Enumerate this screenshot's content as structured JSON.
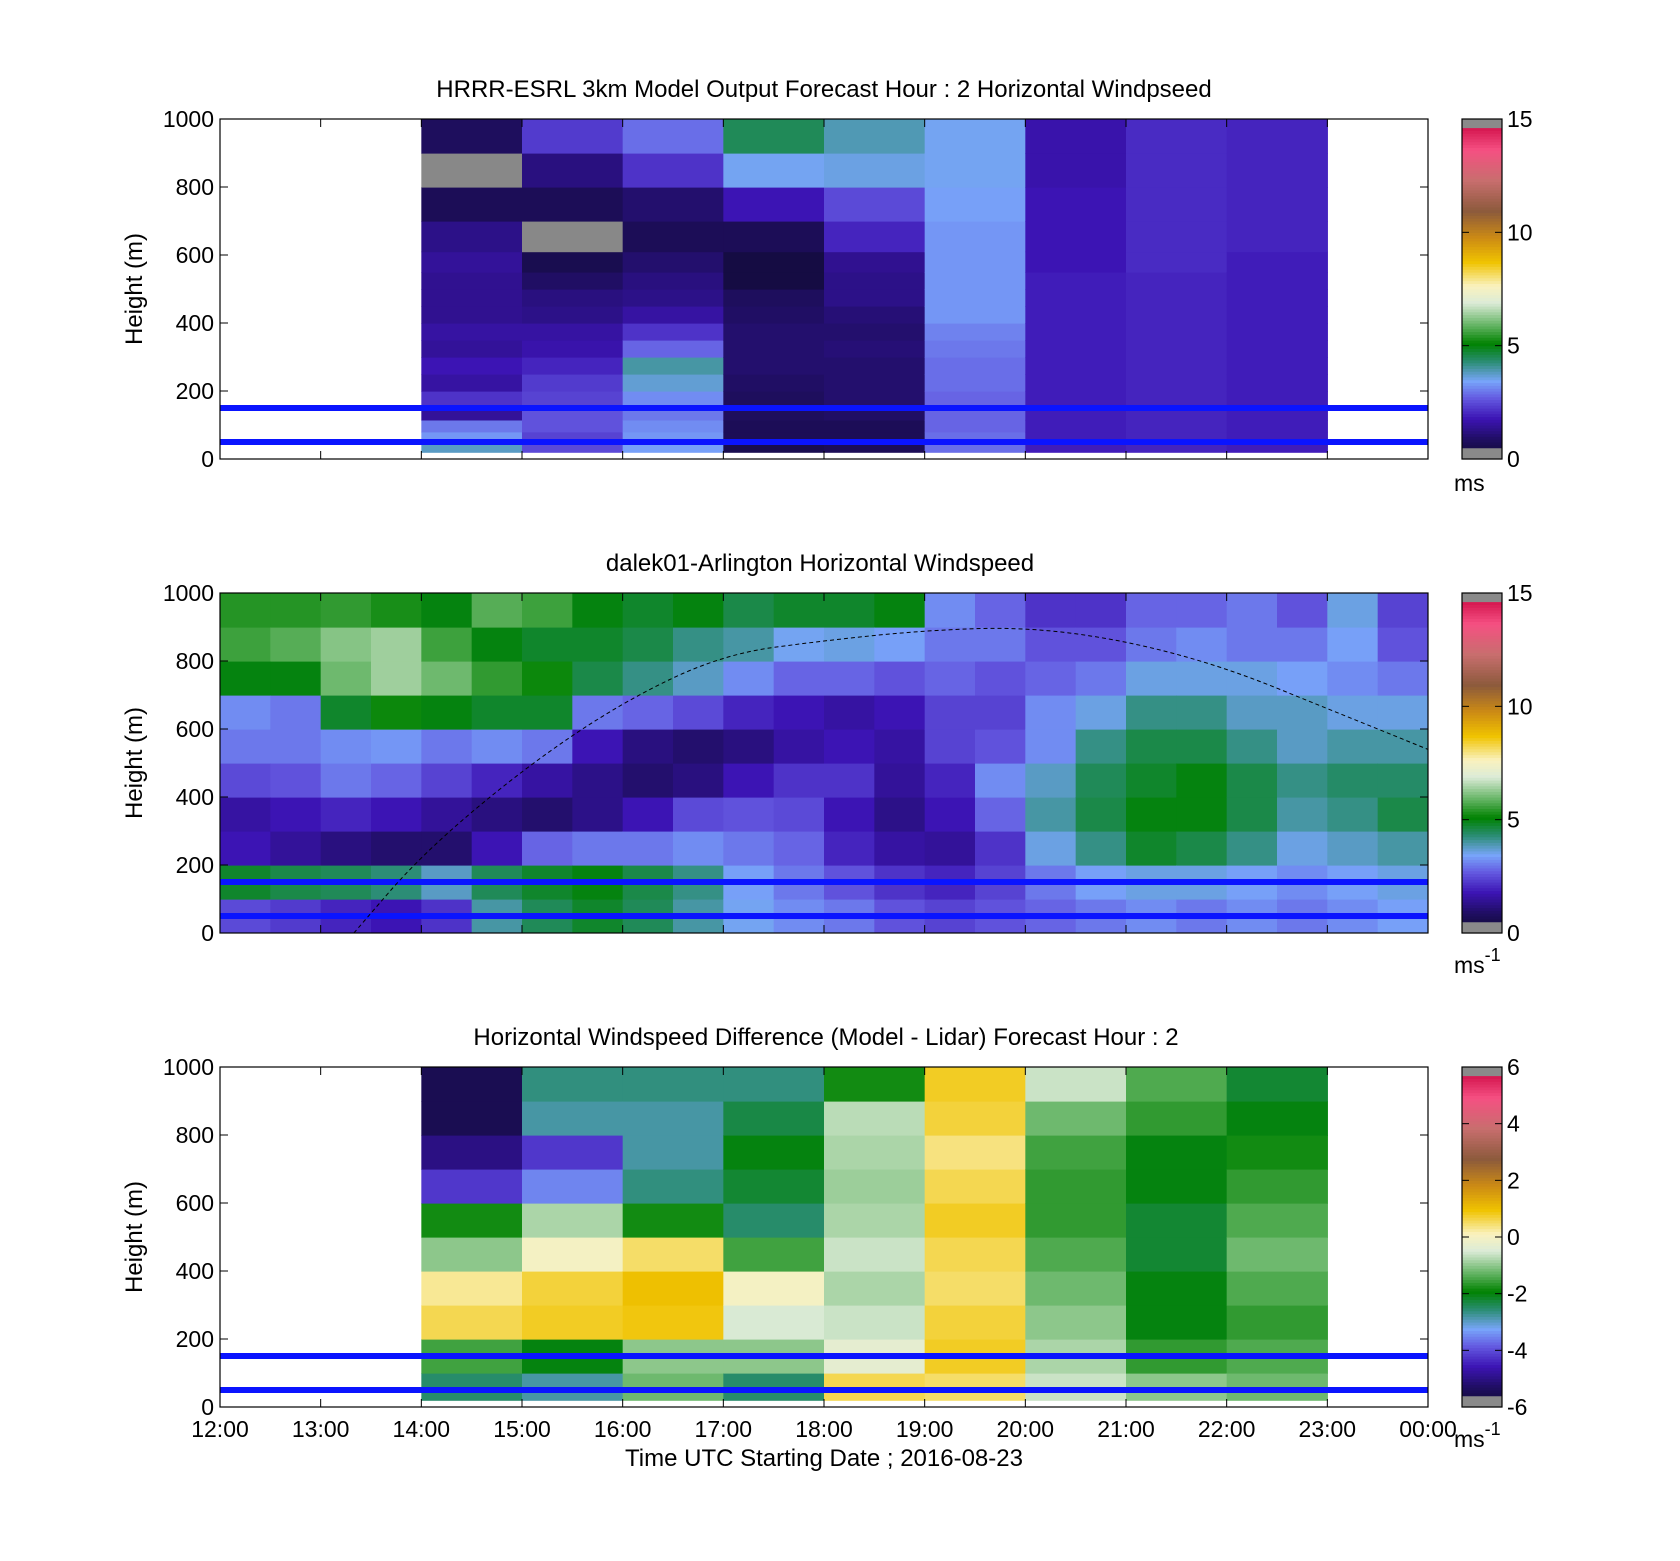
{
  "figure": {
    "xlabel": "Time UTC  Starting Date ; 2016-08-23",
    "x_tick_labels": [
      "12:00",
      "13:00",
      "14:00",
      "15:00",
      "16:00",
      "17:00",
      "18:00",
      "19:00",
      "20:00",
      "21:00",
      "22:00",
      "23:00",
      "00:00"
    ]
  },
  "chart_data": [
    {
      "type": "heatmap",
      "title": "HRRR-ESRL 3km Model Output   Forecast Hour : 2 Horizontal Windpseed",
      "ylabel": "Height (m)",
      "xlim": [
        "12:00",
        "00:00"
      ],
      "ylim": [
        0,
        1000
      ],
      "y_ticks": [
        0,
        200,
        400,
        600,
        800,
        1000
      ],
      "colorbar": {
        "range": [
          0,
          15
        ],
        "ticks": [
          0,
          5,
          10,
          15
        ],
        "unit": "ms",
        "unit_sup": ""
      },
      "reference_lines_m": [
        50,
        150
      ],
      "time_columns": [
        "14:00",
        "15:00",
        "16:00",
        "17:00",
        "18:00",
        "19:00",
        "20:00",
        "21:00",
        "22:00"
      ],
      "heights_m": [
        30,
        60,
        100,
        130,
        170,
        230,
        270,
        330,
        370,
        430,
        470,
        530,
        570,
        650,
        750,
        850,
        950
      ],
      "values_ms": [
        [
          3.8,
          3.3,
          3.0,
          1.5,
          2.2,
          1.6,
          1.8,
          1.5,
          1.6,
          1.4,
          1.4,
          1.4,
          1.5,
          1.3,
          0.7,
          -1,
          0.8
        ],
        [
          2.5,
          2.4,
          2.6,
          2.6,
          2.4,
          2.3,
          2.0,
          1.7,
          1.6,
          1.3,
          1.2,
          0.9,
          0.6,
          -1,
          0.7,
          1.2,
          2.3
        ],
        [
          3.4,
          3.3,
          3.2,
          3.0,
          3.2,
          3.7,
          4.0,
          2.8,
          2.2,
          1.6,
          1.3,
          1.2,
          1.0,
          0.7,
          1.0,
          2.2,
          2.9
        ],
        [
          0.6,
          0.7,
          0.7,
          0.8,
          0.8,
          0.9,
          1.0,
          1.0,
          1.0,
          0.9,
          0.8,
          0.4,
          0.4,
          0.7,
          1.8,
          3.5,
          4.5
        ],
        [
          0.7,
          0.7,
          0.7,
          0.9,
          1.0,
          1.0,
          1.0,
          1.1,
          1.0,
          1.1,
          1.3,
          1.3,
          1.4,
          2.0,
          2.5,
          3.6,
          3.9
        ],
        [
          2.9,
          2.9,
          2.8,
          2.8,
          2.8,
          2.9,
          2.9,
          3.0,
          3.1,
          3.3,
          3.3,
          3.3,
          3.3,
          3.3,
          3.4,
          3.5,
          3.5
        ],
        [
          1.9,
          1.9,
          1.9,
          1.9,
          1.9,
          1.9,
          1.9,
          1.9,
          1.9,
          1.9,
          1.9,
          1.9,
          1.8,
          1.8,
          1.8,
          1.7,
          1.7
        ],
        [
          2.0,
          2.0,
          2.0,
          2.0,
          2.0,
          2.0,
          2.0,
          2.0,
          2.0,
          2.0,
          2.0,
          2.0,
          2.1,
          2.1,
          2.1,
          2.1,
          2.1
        ],
        [
          1.9,
          1.9,
          1.9,
          1.9,
          1.9,
          1.9,
          1.9,
          1.9,
          1.9,
          1.9,
          1.9,
          1.9,
          1.9,
          2.0,
          2.0,
          2.0,
          2.0
        ]
      ]
    },
    {
      "type": "heatmap",
      "title": "dalek01-Arlington  Horizontal Windspeed",
      "ylabel": "Height (m)",
      "xlim": [
        "12:00",
        "00:00"
      ],
      "ylim": [
        0,
        1000
      ],
      "y_ticks": [
        0,
        200,
        400,
        600,
        800,
        1000
      ],
      "colorbar": {
        "range": [
          0,
          15
        ],
        "ticks": [
          0,
          5,
          10,
          15
        ],
        "unit": "ms",
        "unit_sup": "-1"
      },
      "reference_lines_m": [
        50,
        150
      ],
      "overlay_curve": {
        "style": "dashed",
        "points": [
          [
            13.33,
            0
          ],
          [
            14.0,
            230
          ],
          [
            15.0,
            480
          ],
          [
            16.0,
            680
          ],
          [
            17.0,
            820
          ],
          [
            18.0,
            860
          ],
          [
            19.0,
            890
          ],
          [
            20.0,
            900
          ],
          [
            21.0,
            860
          ],
          [
            22.0,
            780
          ],
          [
            23.0,
            660
          ],
          [
            24.0,
            540
          ]
        ]
      },
      "time_columns": [
        "12:00",
        "12:30",
        "13:00",
        "13:30",
        "14:00",
        "14:30",
        "15:00",
        "15:30",
        "16:00",
        "16:30",
        "17:00",
        "17:30",
        "18:00",
        "18:30",
        "19:00",
        "19:30",
        "20:00",
        "20:30",
        "21:00",
        "21:30",
        "22:00",
        "22:30",
        "23:00",
        "23:30"
      ],
      "heights_m": [
        50,
        150,
        250,
        350,
        450,
        550,
        650,
        750,
        850,
        950
      ],
      "values_ms": [
        [
          2.5,
          4.8,
          1.8,
          1.6,
          2.5,
          3.0,
          3.2,
          5.0,
          5.6,
          5.4
        ],
        [
          2.3,
          4.6,
          1.5,
          1.8,
          2.6,
          3.0,
          3.0,
          5.0,
          5.8,
          5.4
        ],
        [
          2.0,
          4.5,
          1.2,
          2.0,
          3.0,
          3.2,
          4.8,
          6.0,
          6.2,
          5.5
        ],
        [
          1.8,
          4.3,
          1.0,
          1.8,
          2.8,
          3.3,
          5.2,
          6.4,
          6.4,
          5.3
        ],
        [
          2.2,
          3.8,
          1.0,
          1.5,
          2.4,
          3.0,
          5.0,
          6.0,
          5.6,
          5.0
        ],
        [
          4.0,
          4.5,
          1.8,
          1.2,
          2.0,
          3.2,
          4.8,
          5.5,
          5.0,
          5.8
        ],
        [
          4.5,
          4.8,
          2.8,
          1.0,
          1.6,
          3.0,
          4.8,
          5.2,
          4.8,
          5.6
        ],
        [
          4.8,
          5.0,
          3.0,
          1.3,
          1.3,
          1.8,
          3.0,
          4.6,
          4.8,
          5.0
        ],
        [
          4.5,
          4.6,
          3.0,
          1.8,
          1.0,
          1.2,
          2.8,
          4.2,
          4.6,
          4.8
        ],
        [
          4.0,
          4.2,
          3.2,
          2.5,
          1.2,
          1.0,
          2.5,
          3.8,
          4.2,
          5.0
        ],
        [
          3.5,
          3.4,
          3.0,
          2.6,
          1.8,
          1.2,
          2.0,
          3.2,
          4.0,
          4.6
        ],
        [
          3.2,
          3.0,
          2.8,
          2.5,
          2.2,
          1.6,
          1.8,
          2.8,
          3.5,
          4.8
        ],
        [
          3.0,
          2.6,
          2.0,
          1.8,
          2.2,
          1.8,
          1.6,
          2.8,
          3.6,
          4.8
        ],
        [
          2.6,
          2.2,
          1.6,
          1.3,
          1.5,
          1.6,
          1.8,
          2.6,
          3.4,
          5.0
        ],
        [
          2.4,
          2.0,
          1.5,
          1.8,
          2.0,
          2.4,
          2.4,
          2.8,
          3.0,
          3.2
        ],
        [
          2.6,
          2.4,
          2.2,
          2.8,
          3.2,
          2.6,
          2.4,
          2.6,
          3.0,
          2.8
        ],
        [
          2.8,
          3.0,
          3.6,
          4.0,
          3.8,
          3.2,
          3.2,
          2.8,
          2.6,
          2.2
        ],
        [
          3.0,
          3.4,
          4.2,
          4.6,
          4.5,
          4.2,
          3.6,
          3.0,
          2.6,
          2.2
        ],
        [
          3.2,
          3.6,
          4.8,
          5.0,
          4.8,
          4.6,
          4.2,
          3.6,
          3.0,
          2.8
        ],
        [
          3.0,
          3.6,
          4.6,
          5.0,
          5.0,
          4.6,
          4.2,
          3.6,
          3.2,
          2.8
        ],
        [
          3.2,
          3.4,
          4.2,
          4.6,
          4.6,
          4.2,
          3.8,
          3.6,
          3.0,
          3.0
        ],
        [
          3.0,
          3.2,
          3.6,
          4.0,
          4.2,
          3.8,
          3.8,
          3.4,
          3.0,
          2.6
        ],
        [
          3.2,
          3.4,
          3.8,
          4.2,
          4.4,
          4.0,
          3.6,
          3.2,
          3.4,
          3.6
        ],
        [
          3.4,
          3.6,
          4.0,
          4.6,
          4.4,
          4.0,
          3.6,
          3.0,
          2.6,
          2.4
        ]
      ]
    },
    {
      "type": "heatmap",
      "title": "Horizontal Windspeed Difference (Model - Lidar) Forecast Hour : 2",
      "ylabel": "Height (m)",
      "xlim": [
        "12:00",
        "00:00"
      ],
      "ylim": [
        0,
        1000
      ],
      "y_ticks": [
        0,
        200,
        400,
        600,
        800,
        1000
      ],
      "colorbar": {
        "range": [
          -6,
          6
        ],
        "ticks": [
          -6,
          -4,
          -2,
          0,
          2,
          4,
          6
        ],
        "unit": "ms",
        "unit_sup": "-1"
      },
      "reference_lines_m": [
        50,
        150
      ],
      "time_columns": [
        "14:00",
        "15:00",
        "16:00",
        "17:00",
        "18:00",
        "19:00",
        "20:00",
        "21:00",
        "22:00"
      ],
      "heights_m": [
        50,
        150,
        250,
        350,
        450,
        550,
        650,
        750,
        850,
        950
      ],
      "values_ms": [
        [
          -2.5,
          -1.5,
          0.6,
          0.3,
          -1.0,
          -1.8,
          -4.2,
          -5.0,
          -5.5,
          -5.5
        ],
        [
          -2.8,
          -2.0,
          0.8,
          0.7,
          0.0,
          -0.8,
          -3.5,
          -4.2,
          -2.8,
          -2.6
        ],
        [
          -1.2,
          -1.0,
          0.9,
          1.0,
          0.5,
          -1.8,
          -2.6,
          -2.8,
          -2.8,
          -2.6
        ],
        [
          -2.5,
          -1.0,
          -0.5,
          0.0,
          -1.5,
          -2.5,
          -2.2,
          -2.0,
          -2.3,
          -2.6
        ],
        [
          0.6,
          -0.3,
          -0.6,
          -0.8,
          -0.6,
          -0.8,
          -0.9,
          -0.8,
          -0.7,
          -1.8
        ],
        [
          0.5,
          0.8,
          0.7,
          0.5,
          0.6,
          0.8,
          0.6,
          0.4,
          0.7,
          0.8
        ],
        [
          -0.6,
          -0.8,
          -1.0,
          -1.2,
          -1.4,
          -1.6,
          -1.6,
          -1.5,
          -1.2,
          -0.6
        ],
        [
          -1.0,
          -1.6,
          -2.0,
          -2.0,
          -2.2,
          -2.2,
          -2.0,
          -2.0,
          -1.6,
          -1.4
        ],
        [
          -1.2,
          -1.4,
          -1.6,
          -1.4,
          -1.2,
          -1.4,
          -1.6,
          -1.8,
          -2.0,
          -2.2
        ]
      ]
    }
  ]
}
